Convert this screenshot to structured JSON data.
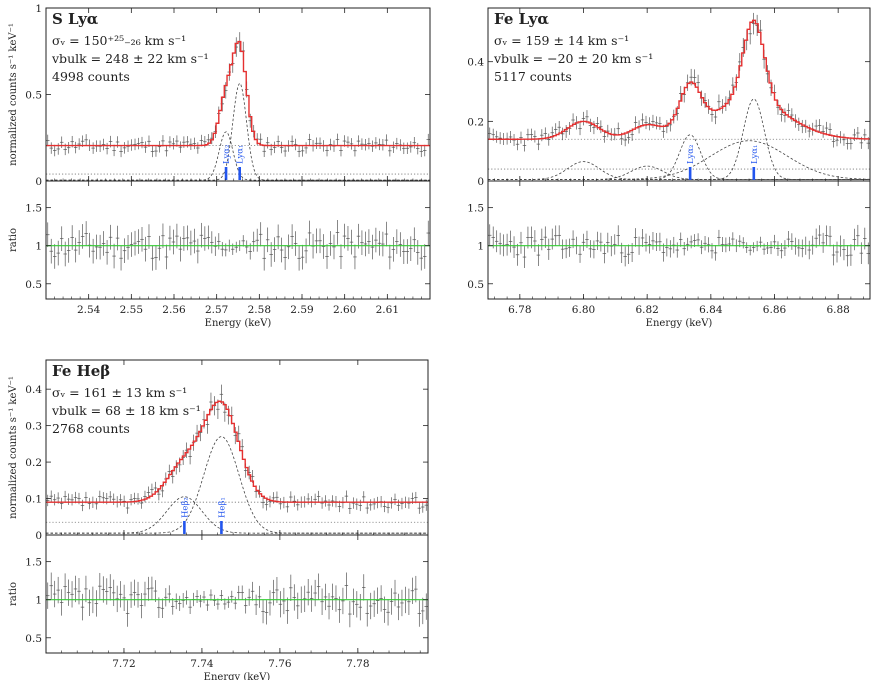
{
  "chart_data": [
    {
      "type": "line",
      "id": "s-lya",
      "title": "S Lyα",
      "stats": {
        "sigma_line": "σᵥ = 150⁺²⁵₋₂₆ km s⁻¹",
        "vbulk_line": "vbulk = 248 ± 22 km s⁻¹",
        "counts_line": "4998 counts"
      },
      "ylabel": "normalized counts s⁻¹ keV⁻¹",
      "ratio_label": "ratio",
      "xlabel": "Energy (keV)",
      "xlim": [
        2.53,
        2.62
      ],
      "ylim": [
        0,
        1.0
      ],
      "ratio_ylim": [
        0.3,
        1.85
      ],
      "xticks": [
        "2.54",
        "2.55",
        "2.56",
        "2.57",
        "2.58",
        "2.59",
        "2.60",
        "2.61"
      ],
      "yticks": [
        "0",
        "0.5",
        "1"
      ],
      "ratio_yticks": [
        "0.5",
        "1",
        "1.5"
      ],
      "continuum": 0.205,
      "lower_dotted": 0.04,
      "components": [
        {
          "name": "Lyα2",
          "label": "Lyα₂",
          "center": 2.5722,
          "amp": 0.28,
          "sigma": 0.0016
        },
        {
          "name": "Lyα1",
          "label": "Lyα₁",
          "center": 2.5754,
          "amp": 0.56,
          "sigma": 0.0016
        }
      ],
      "markers": [
        2.5722,
        2.5754
      ],
      "seed": 11
    },
    {
      "type": "line",
      "id": "fe-lya",
      "title": "Fe Lyα",
      "stats": {
        "sigma_line": "σᵥ = 159 ± 14 km s⁻¹",
        "vbulk_line": "vbulk = −20 ± 20 km s⁻¹",
        "counts_line": "5117 counts"
      },
      "ylabel": "",
      "ratio_label": "",
      "xlabel": "Energy (keV)",
      "xlim": [
        6.77,
        6.89
      ],
      "ylim": [
        0,
        0.58
      ],
      "ratio_ylim": [
        0.3,
        1.85
      ],
      "xticks": [
        "6.78",
        "6.80",
        "6.82",
        "6.84",
        "6.86",
        "6.88"
      ],
      "yticks": [
        "0",
        "0.2",
        "0.4"
      ],
      "ratio_yticks": [
        "0.5",
        "1",
        "1.5"
      ],
      "continuum": 0.14,
      "lower_dotted": 0.04,
      "components": [
        {
          "name": "Lyα2",
          "label": "Lyα₂",
          "center": 6.8335,
          "amp": 0.15,
          "sigma": 0.0033
        },
        {
          "name": "Lyα1",
          "label": "Lyα₁",
          "center": 6.8535,
          "amp": 0.27,
          "sigma": 0.0033
        },
        {
          "name": "broad",
          "label": "",
          "center": 6.852,
          "amp": 0.13,
          "sigma": 0.012
        },
        {
          "name": "sat1",
          "label": "",
          "center": 6.8,
          "amp": 0.06,
          "sigma": 0.005
        },
        {
          "name": "sat2",
          "label": "",
          "center": 6.82,
          "amp": 0.045,
          "sigma": 0.005
        }
      ],
      "markers": [
        6.8335,
        6.8535
      ],
      "seed": 23
    },
    {
      "type": "line",
      "id": "fe-heb",
      "title": "Fe Heβ",
      "stats": {
        "sigma_line": "σᵥ = 161 ± 13 km s⁻¹",
        "vbulk_line": "vbulk = 68 ± 18 km s⁻¹",
        "counts_line": "2768 counts"
      },
      "ylabel": "normalized counts s⁻¹ keV⁻¹",
      "ratio_label": "ratio",
      "xlabel": "Energy (keV)",
      "xlim": [
        7.7,
        7.798
      ],
      "ylim": [
        0,
        0.48
      ],
      "ratio_ylim": [
        0.3,
        1.85
      ],
      "xticks": [
        "7.72",
        "7.74",
        "7.76",
        "7.78"
      ],
      "yticks": [
        "0",
        "0.1",
        "0.2",
        "0.3",
        "0.4"
      ],
      "ratio_yticks": [
        "0.5",
        "1",
        "1.5"
      ],
      "continuum": 0.09,
      "lower_dotted": 0.035,
      "components": [
        {
          "name": "Heβ2",
          "label": "Heβ₂",
          "center": 7.7355,
          "amp": 0.1,
          "sigma": 0.0045
        },
        {
          "name": "Heβ1",
          "label": "Heβ₁",
          "center": 7.745,
          "amp": 0.265,
          "sigma": 0.0045
        }
      ],
      "markers": [
        7.7355,
        7.745
      ],
      "seed": 37
    }
  ],
  "colors": {
    "model": "#e53030",
    "ratio_line": "#33cc33",
    "marker": "#2255ee",
    "data": "#555555"
  }
}
